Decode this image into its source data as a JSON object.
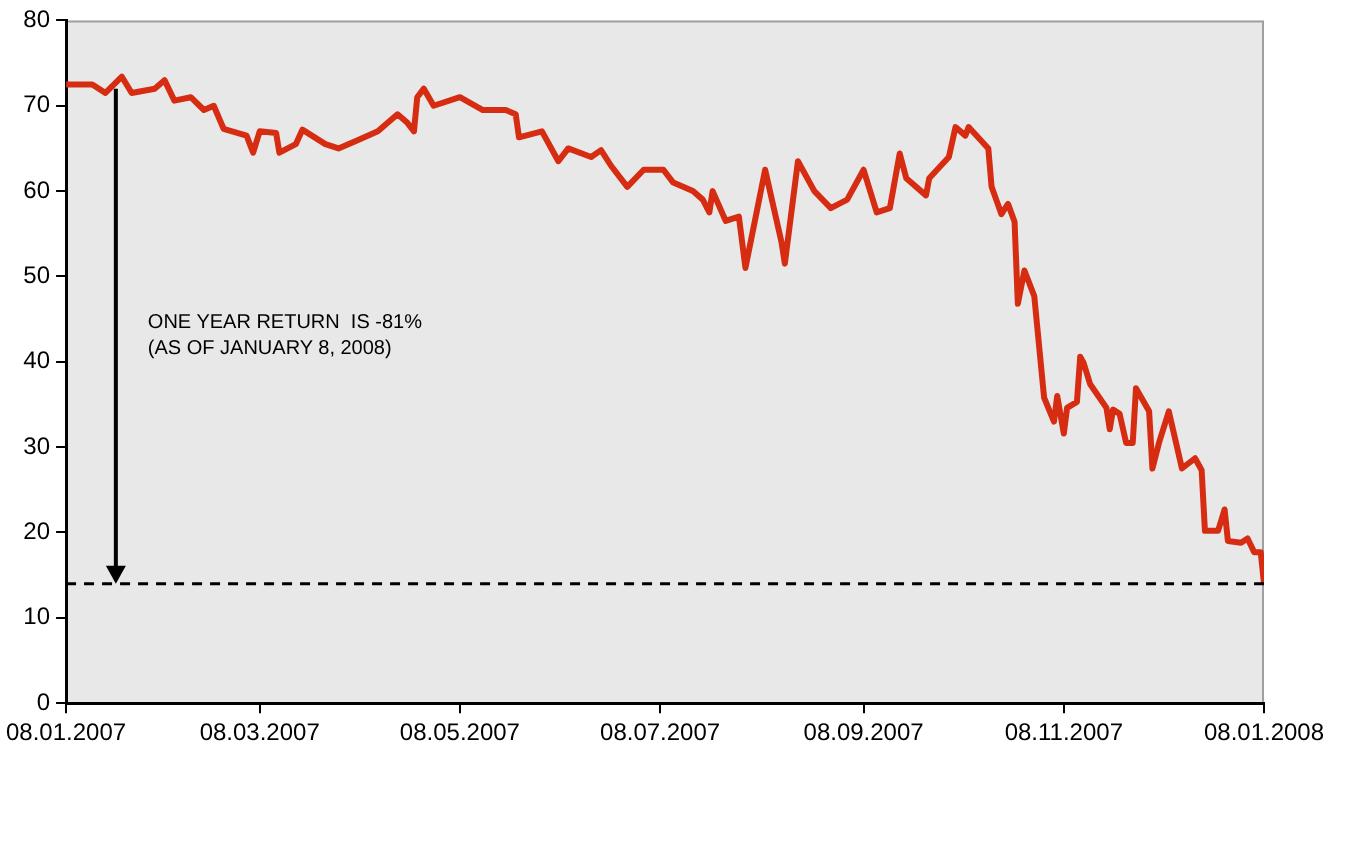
{
  "chart_data": {
    "type": "line",
    "grid": false,
    "legend": false,
    "marker": "none",
    "line_style": "solid",
    "x": [
      "2007-01-08",
      "2007-01-16",
      "2007-01-20",
      "2007-01-25",
      "2007-01-28",
      "2007-02-04",
      "2007-02-07",
      "2007-02-10",
      "2007-02-15",
      "2007-02-19",
      "2007-02-22",
      "2007-02-25",
      "2007-03-04",
      "2007-03-06",
      "2007-03-08",
      "2007-03-13",
      "2007-03-14",
      "2007-03-19",
      "2007-03-21",
      "2007-03-28",
      "2007-04-01",
      "2007-04-07",
      "2007-04-13",
      "2007-04-19",
      "2007-04-22",
      "2007-04-24",
      "2007-04-25",
      "2007-04-27",
      "2007-04-30",
      "2007-05-08",
      "2007-05-15",
      "2007-05-22",
      "2007-05-25",
      "2007-05-26",
      "2007-06-02",
      "2007-06-07",
      "2007-06-10",
      "2007-06-17",
      "2007-06-20",
      "2007-06-23",
      "2007-06-28",
      "2007-07-03",
      "2007-07-09",
      "2007-07-12",
      "2007-07-18",
      "2007-07-21",
      "2007-07-23",
      "2007-07-24",
      "2007-07-28",
      "2007-08-01",
      "2007-08-03",
      "2007-08-09",
      "2007-08-14",
      "2007-08-15",
      "2007-08-19",
      "2007-08-24",
      "2007-08-29",
      "2007-09-03",
      "2007-09-08",
      "2007-09-12",
      "2007-09-16",
      "2007-09-19",
      "2007-09-21",
      "2007-09-27",
      "2007-09-28",
      "2007-10-04",
      "2007-10-06",
      "2007-10-09",
      "2007-10-10",
      "2007-10-16",
      "2007-10-17",
      "2007-10-20",
      "2007-10-22",
      "2007-10-24",
      "2007-10-25",
      "2007-10-27",
      "2007-10-30",
      "2007-11-02",
      "2007-11-05",
      "2007-11-06",
      "2007-11-08",
      "2007-11-09",
      "2007-11-12",
      "2007-11-13",
      "2007-11-14",
      "2007-11-16",
      "2007-11-21",
      "2007-11-22",
      "2007-11-23",
      "2007-11-25",
      "2007-11-27",
      "2007-11-29",
      "2007-11-30",
      "2007-12-04",
      "2007-12-05",
      "2007-12-07",
      "2007-12-10",
      "2007-12-14",
      "2007-12-18",
      "2007-12-20",
      "2007-12-21",
      "2007-12-25",
      "2007-12-27",
      "2007-12-28",
      "2008-01-01",
      "2008-01-03",
      "2008-01-05",
      "2008-01-07",
      "2008-01-08"
    ],
    "series": [
      {
        "color": "#d62d12",
        "values": [
          72.5,
          72.5,
          71.5,
          73.4,
          71.5,
          72,
          73,
          70.6,
          71,
          69.5,
          70,
          67.3,
          66.5,
          64.5,
          67,
          66.8,
          64.5,
          65.5,
          67.2,
          65.5,
          65,
          66,
          67,
          69,
          68,
          67,
          71,
          72,
          70,
          71,
          69.5,
          69.5,
          69,
          66.3,
          67,
          63.5,
          65,
          64,
          64.8,
          63,
          60.5,
          62.5,
          62.5,
          61,
          60,
          59,
          57.5,
          60,
          56.5,
          57,
          51,
          62.5,
          54,
          51.5,
          63.5,
          60,
          58,
          59,
          62.5,
          57.5,
          58,
          64.4,
          61.5,
          59.5,
          61.5,
          64,
          67.5,
          66.5,
          67.5,
          65,
          60.5,
          57.3,
          58.5,
          56.4,
          46.8,
          50.7,
          47.7,
          35.8,
          33,
          36,
          31.6,
          34.6,
          35.3,
          40.6,
          39.9,
          37.4,
          34.6,
          32.1,
          34.4,
          33.9,
          30.5,
          30.5,
          36.9,
          34.2,
          27.5,
          30.5,
          34.2,
          27.5,
          28.7,
          27.3,
          20.2,
          20.2,
          22.7,
          19,
          18.8,
          19.3,
          17.7,
          17.7,
          14
        ]
      }
    ],
    "xlim": [
      "2007-01-08",
      "2008-01-08"
    ],
    "xticks": [
      {
        "value": "2007-01-08",
        "label": "08.01.2007"
      },
      {
        "value": "2007-03-08",
        "label": "08.03.2007"
      },
      {
        "value": "2007-05-08",
        "label": "08.05.2007"
      },
      {
        "value": "2007-07-08",
        "label": "08.07.2007"
      },
      {
        "value": "2007-09-08",
        "label": "08.09.2007"
      },
      {
        "value": "2007-11-08",
        "label": "08.11.2007"
      },
      {
        "value": "2008-01-08",
        "label": "08.01.2008"
      }
    ],
    "ylim": [
      0,
      80
    ],
    "yticks": [
      0,
      10,
      20,
      30,
      40,
      50,
      60,
      70,
      80
    ],
    "ref_lines": [
      {
        "axis": "y",
        "value": 14,
        "color": "#000000",
        "line_style": "dashed"
      }
    ],
    "annotations": [
      "ONE YEAR RETURN  IS -81%\n(AS OF JANUARY 8, 2008)"
    ]
  }
}
